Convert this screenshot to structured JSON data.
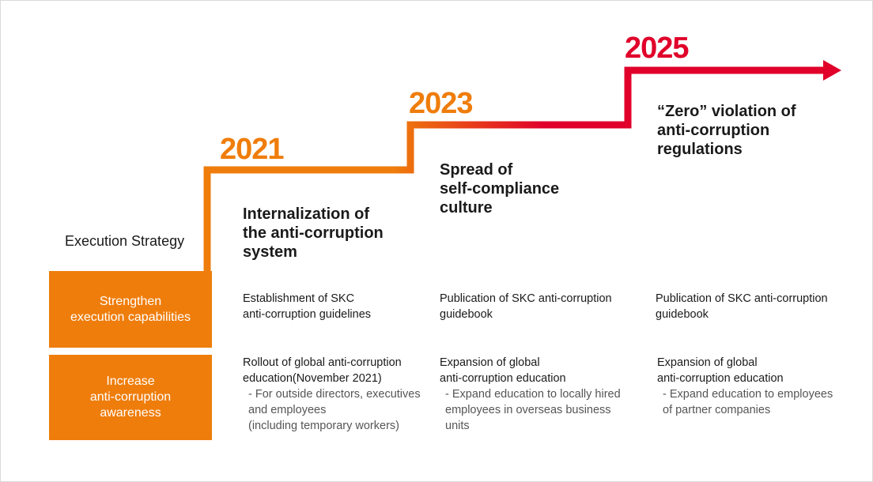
{
  "years": [
    "2021",
    "2023",
    "2025"
  ],
  "colors": {
    "orange": "#ef7d0b",
    "red": "#e0002a",
    "year_2021": "#ef7d0b",
    "year_2023": "#ef7d0b",
    "year_2025": "#e0002a"
  },
  "goals": [
    "Internalization of\nthe anti-corruption\nsystem",
    "Spread of\nself-compliance\nculture",
    "“Zero” violation of\nanti-corruption\nregulations"
  ],
  "strategy_title": "Execution Strategy",
  "rows": [
    {
      "label": "Strengthen\nexecution capabilities",
      "cells": [
        {
          "main": "Establishment of SKC\nanti-corruption guidelines",
          "sub": ""
        },
        {
          "main": "Publication of SKC anti-corruption\nguidebook",
          "sub": ""
        },
        {
          "main": "Publication of SKC anti-corruption\nguidebook",
          "sub": ""
        }
      ]
    },
    {
      "label": "Increase\nanti-corruption\nawareness",
      "cells": [
        {
          "main": "Rollout of global anti-corruption\neducation(November 2021)",
          "sub": "- For outside directors, executives\n  and employees\n  (including temporary workers)"
        },
        {
          "main": "Expansion of global\nanti-corruption education",
          "sub": "- Expand education to locally hired\n  employees in overseas business\n  units"
        },
        {
          "main": "Expansion of global\nanti-corruption education",
          "sub": "- Expand education to employees\n  of partner companies"
        }
      ]
    }
  ]
}
